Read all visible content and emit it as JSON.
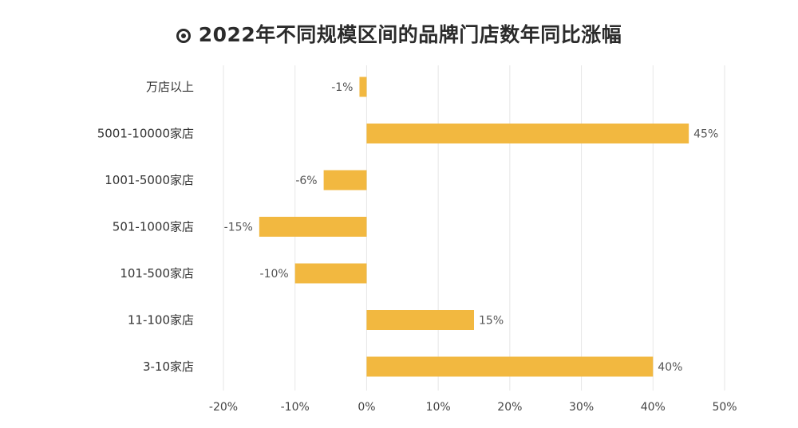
{
  "chart_data": {
    "type": "bar",
    "orientation": "horizontal",
    "title": "2022年不同规模区间的品牌门店数年同比涨幅",
    "categories": [
      "万店以上",
      "5001-10000家店",
      "1001-5000家店",
      "501-1000家店",
      "101-500家店",
      "11-100家店",
      "3-10家店"
    ],
    "values": [
      -1,
      45,
      -6,
      -15,
      -10,
      15,
      40
    ],
    "data_labels": [
      "-1%",
      "45%",
      "-6%",
      "-15%",
      "-10%",
      "15%",
      "40%"
    ],
    "x_ticks": [
      -20,
      -10,
      0,
      10,
      20,
      30,
      40,
      50
    ],
    "x_tick_labels": [
      "-20%",
      "-10%",
      "0%",
      "10%",
      "20%",
      "30%",
      "40%",
      "50%"
    ],
    "xlim": [
      -20,
      50
    ],
    "xlabel": "",
    "ylabel": "",
    "grid": "vertical",
    "legend": "none",
    "bar_color": "#F2B840"
  }
}
